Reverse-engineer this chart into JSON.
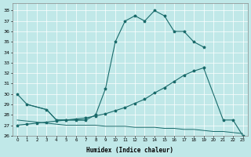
{
  "bg_color": "#c0e8e8",
  "grid_color": "#ffffff",
  "line_color": "#1a6b6b",
  "xlabel": "Humidex (Indice chaleur)",
  "xlim": [
    -0.5,
    23.5
  ],
  "ylim": [
    26,
    38.7
  ],
  "yticks": [
    26,
    27,
    28,
    29,
    30,
    31,
    32,
    33,
    34,
    35,
    36,
    37,
    38
  ],
  "xticks": [
    0,
    1,
    2,
    3,
    4,
    5,
    6,
    7,
    8,
    9,
    10,
    11,
    12,
    13,
    14,
    15,
    16,
    17,
    18,
    19,
    20,
    21,
    22,
    23
  ],
  "line1_x": [
    0,
    1,
    3,
    4,
    5,
    6,
    7,
    8,
    9,
    10,
    11,
    12,
    13,
    14,
    15,
    16,
    17,
    18,
    19
  ],
  "line1_y": [
    30.0,
    29.0,
    28.5,
    27.5,
    27.5,
    27.5,
    27.5,
    28.0,
    30.5,
    35.0,
    37.0,
    37.5,
    37.0,
    38.0,
    37.5,
    36.0,
    36.0,
    35.0,
    34.5
  ],
  "line2_x": [
    0,
    1,
    2,
    3,
    4,
    5,
    6,
    7,
    8,
    9,
    10,
    11,
    12,
    13,
    14,
    15,
    16,
    17,
    18,
    19,
    21,
    22,
    23
  ],
  "line2_y": [
    27.0,
    27.1,
    27.2,
    27.3,
    27.4,
    27.5,
    27.6,
    27.7,
    27.9,
    28.1,
    28.4,
    28.7,
    29.1,
    29.5,
    30.1,
    30.6,
    31.2,
    31.8,
    32.2,
    32.5,
    27.5,
    27.5,
    26.0
  ],
  "line3_x": [
    0,
    1,
    2,
    3,
    4,
    5,
    6,
    7,
    8,
    9,
    10,
    11,
    12,
    13,
    14,
    15,
    16,
    17,
    18,
    19,
    20,
    21,
    22,
    23
  ],
  "line3_y": [
    27.5,
    27.4,
    27.3,
    27.2,
    27.1,
    27.0,
    27.0,
    27.0,
    27.0,
    26.9,
    26.9,
    26.9,
    26.8,
    26.8,
    26.8,
    26.7,
    26.7,
    26.6,
    26.6,
    26.5,
    26.4,
    26.4,
    26.3,
    26.2
  ],
  "line_mini_x": [
    1,
    3,
    4,
    5,
    6,
    7
  ],
  "line_mini_y": [
    29.0,
    28.5,
    27.5,
    27.5,
    27.5,
    27.5
  ]
}
